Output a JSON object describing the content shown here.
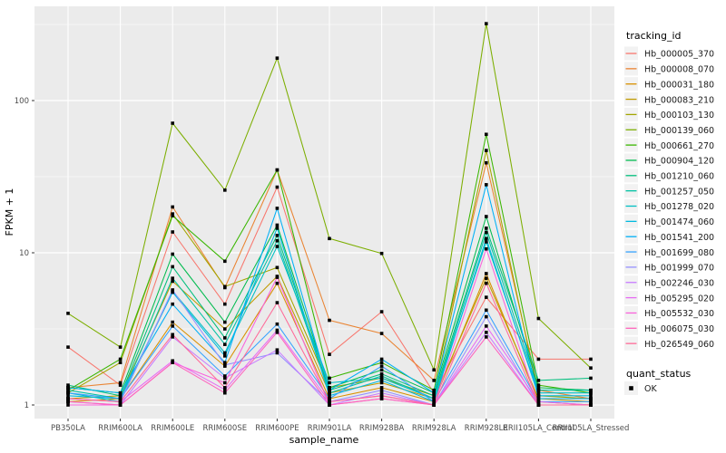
{
  "chart_data": {
    "type": "line",
    "y_scale": "log10",
    "panel_bg": "#EBEBEB",
    "grid_color": "#FFFFFF",
    "tick_color": "#333333",
    "tick_text_color": "#4D4D4D",
    "point_color": "#000000",
    "axes": {
      "x": {
        "title": "sample_name",
        "categories": [
          "PB350LA",
          "RRIM600LA",
          "RRIM600LE",
          "RRIM600SE",
          "RRIM600PE",
          "RRIM901LA",
          "RRIM928BA",
          "RRIM928LA",
          "RRIM928LE",
          "RRII105LA_Control",
          "RRII105LA_Stressed"
        ]
      },
      "y": {
        "title": "FPKM + 1",
        "major_ticks": [
          1,
          10,
          100
        ],
        "minor_gridlines": [
          3.162,
          31.62,
          316.2
        ],
        "range_hint": [
          0.93,
          430
        ]
      }
    },
    "legend": {
      "tracking_title": "tracking_id",
      "quant_title": "quant_status",
      "quant_items": [
        {
          "label": "OK",
          "marker": "black-square"
        }
      ],
      "key_bg": "#F2F2F2"
    },
    "series": [
      {
        "name": "Hb_000005_370",
        "color": "#F8766D",
        "values": [
          2.4,
          1.35,
          13.7,
          4.6,
          27,
          2.15,
          4.1,
          1.2,
          5.1,
          2.0,
          2.0
        ]
      },
      {
        "name": "Hb_000008_070",
        "color": "#EA8331",
        "values": [
          1.3,
          1.4,
          20,
          5.9,
          35,
          3.6,
          2.95,
          1.45,
          39,
          1.25,
          1.1
        ]
      },
      {
        "name": "Hb_000031_180",
        "color": "#D89000",
        "values": [
          1.05,
          1.1,
          3.5,
          1.8,
          6.3,
          1.1,
          1.3,
          1.05,
          7.3,
          1.05,
          1.0
        ]
      },
      {
        "name": "Hb_000083_210",
        "color": "#C09B00",
        "values": [
          1.1,
          1.15,
          6.5,
          3.16,
          7.0,
          1.2,
          1.4,
          1.1,
          6.8,
          1.1,
          1.05
        ]
      },
      {
        "name": "Hb_000103_130",
        "color": "#A3A500",
        "values": [
          1.2,
          1.9,
          18,
          6.0,
          8.0,
          1.3,
          1.5,
          1.15,
          47,
          1.15,
          1.1
        ]
      },
      {
        "name": "Hb_000139_060",
        "color": "#7CAE00",
        "values": [
          4.0,
          2.4,
          71,
          25.8,
          190,
          12.4,
          9.9,
          1.7,
          320,
          3.7,
          1.75
        ]
      },
      {
        "name": "Hb_000661_270",
        "color": "#39B600",
        "values": [
          1.25,
          2.0,
          17.5,
          8.8,
          35,
          1.5,
          1.9,
          1.25,
          60,
          1.35,
          1.2
        ]
      },
      {
        "name": "Hb_000904_120",
        "color": "#00BB4E",
        "values": [
          1.3,
          1.2,
          9.8,
          3.5,
          15.2,
          1.3,
          1.7,
          1.2,
          17.3,
          1.3,
          1.25
        ]
      },
      {
        "name": "Hb_001210_060",
        "color": "#00BF7D",
        "values": [
          1.35,
          1.15,
          8.1,
          2.76,
          13,
          1.25,
          1.6,
          1.15,
          14.5,
          1.45,
          1.5
        ]
      },
      {
        "name": "Hb_001257_050",
        "color": "#00C1A3",
        "values": [
          1.25,
          1.1,
          6.8,
          2.5,
          12,
          1.2,
          1.55,
          1.1,
          13.6,
          1.25,
          1.25
        ]
      },
      {
        "name": "Hb_001278_020",
        "color": "#00BFC4",
        "values": [
          1.2,
          1.05,
          5.6,
          2.2,
          11,
          1.4,
          1.5,
          1.1,
          11.8,
          1.2,
          1.2
        ]
      },
      {
        "name": "Hb_001474_060",
        "color": "#00BAE0",
        "values": [
          1.15,
          1.1,
          5.5,
          2.1,
          14.5,
          1.15,
          1.45,
          1.05,
          12.4,
          1.15,
          1.15
        ]
      },
      {
        "name": "Hb_001541_200",
        "color": "#00B0F6",
        "values": [
          1.3,
          1.2,
          4.6,
          1.9,
          19.6,
          1.25,
          2.0,
          1.2,
          28,
          1.1,
          1.1
        ]
      },
      {
        "name": "Hb_001699_080",
        "color": "#35A2FF",
        "values": [
          1.2,
          1.1,
          3.3,
          1.55,
          3.4,
          1.1,
          1.8,
          1.05,
          4.2,
          1.05,
          1.05
        ]
      },
      {
        "name": "Hb_001999_070",
        "color": "#9590FF",
        "values": [
          1.1,
          1.05,
          5.7,
          1.83,
          2.2,
          1.05,
          1.25,
          1.0,
          3.8,
          1.0,
          1.0
        ]
      },
      {
        "name": "Hb_002246_030",
        "color": "#C77CFF",
        "values": [
          1.05,
          1.0,
          2.8,
          1.5,
          2.3,
          1.0,
          1.2,
          1.0,
          3.0,
          1.0,
          1.0
        ]
      },
      {
        "name": "Hb_005295_020",
        "color": "#E76BF3",
        "values": [
          1.1,
          1.05,
          1.95,
          1.26,
          3.1,
          1.05,
          1.15,
          1.0,
          3.3,
          1.05,
          1.0
        ]
      },
      {
        "name": "Hb_005532_030",
        "color": "#FA62DB",
        "values": [
          1.0,
          1.0,
          1.9,
          1.4,
          6.9,
          1.0,
          1.1,
          1.0,
          10.6,
          1.0,
          1.0
        ]
      },
      {
        "name": "Hb_006075_030",
        "color": "#FF62BC",
        "values": [
          1.05,
          1.0,
          1.9,
          1.2,
          3.0,
          1.0,
          1.1,
          1.0,
          2.8,
          1.0,
          1.0
        ]
      },
      {
        "name": "Hb_026549_060",
        "color": "#FF6A98",
        "values": [
          1.1,
          1.05,
          2.9,
          1.3,
          4.7,
          1.05,
          1.15,
          1.0,
          6.3,
          1.0,
          1.0
        ]
      }
    ]
  }
}
